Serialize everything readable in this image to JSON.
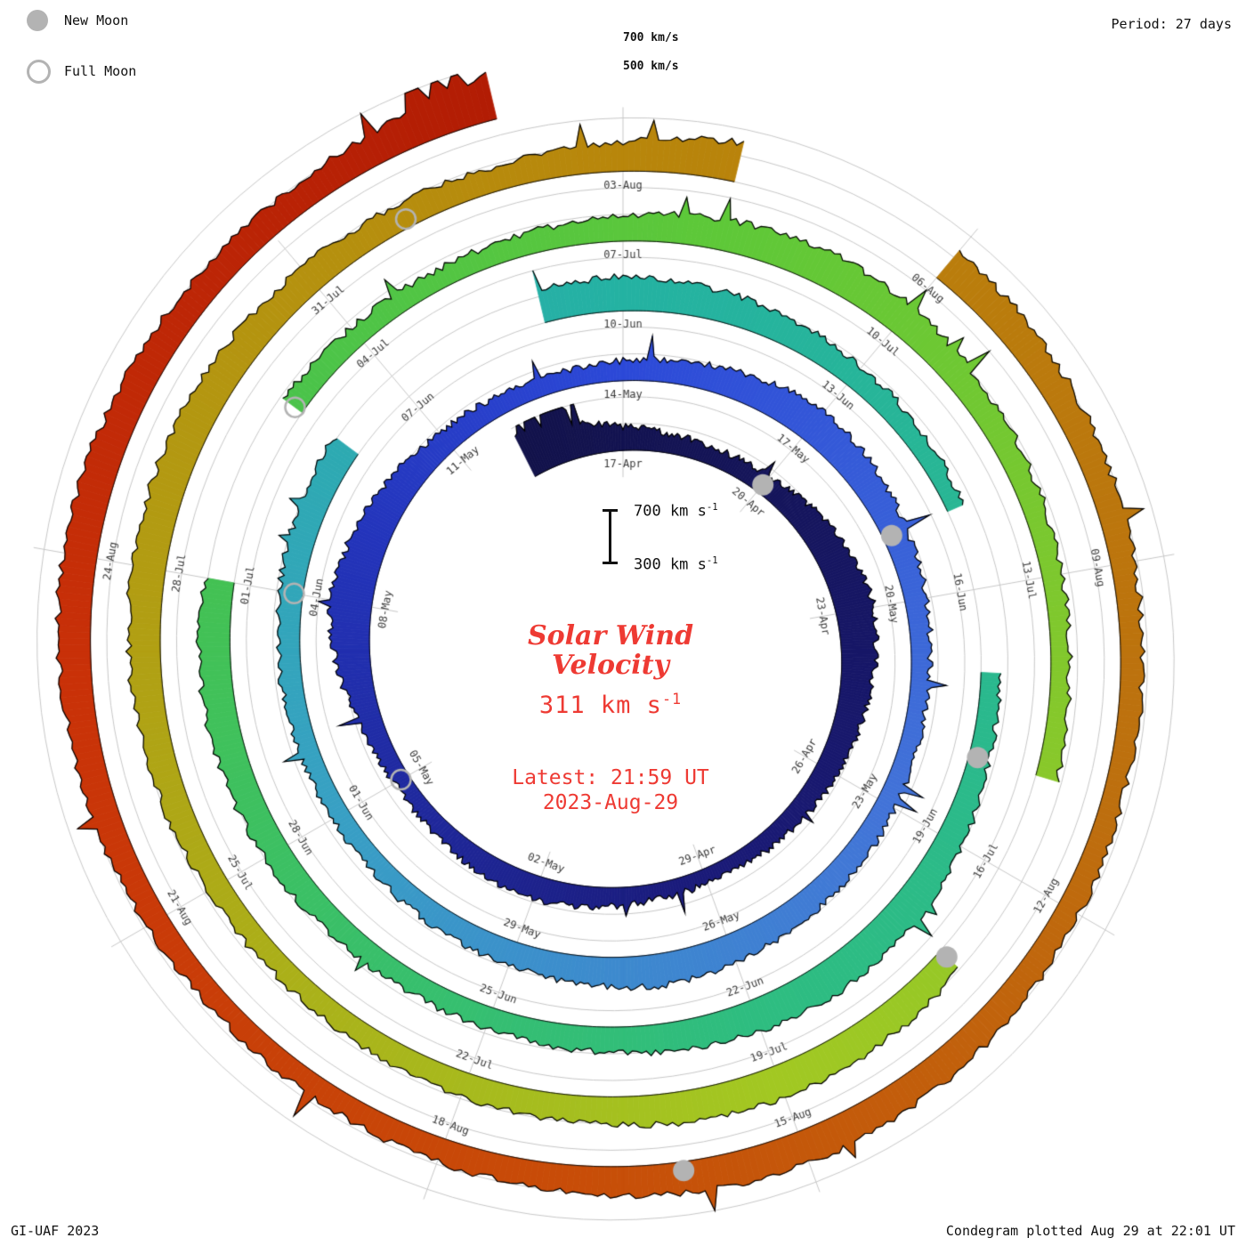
{
  "page": {
    "legend": {
      "new_moon": "New Moon",
      "full_moon": "Full Moon"
    },
    "period": "Period: 27 days",
    "grid_label_700": "700 km/s",
    "grid_label_500": "500 km/s",
    "credit": "GI-UAF 2023",
    "footer": "Condegram plotted Aug 29 at 22:01 UT",
    "center": {
      "title1": "Solar Wind",
      "title2": "Velocity",
      "value": "311 km s",
      "value_sup": "-1",
      "latest": "Latest: 21:59 UT",
      "date": "2023-Aug-29",
      "scale_hi": "700 km s",
      "scale_lo": "300 km s",
      "scale_sup": "-1"
    },
    "colors": {
      "accent_red": "#ee3a33",
      "moon_gray": "#b3b3b3",
      "grid_gray": "#c7c7c7",
      "label_gray": "#3a3a3a"
    }
  },
  "chart_data": {
    "type": "spiral-condegram",
    "quantity": "Solar wind velocity (km/s)",
    "start_date": "2023-04-15",
    "end_date": "2023-08-29",
    "period_days": 27,
    "velocity_axis": {
      "min": 300,
      "max": 700,
      "gridlines": [
        300,
        500,
        700
      ]
    },
    "latest_value_kms": 311,
    "latest_time": "21:59 UT 2023-Aug-29",
    "date_labels": [
      {
        "t": 2,
        "text": "17-Apr"
      },
      {
        "t": 5,
        "text": "20-Apr"
      },
      {
        "t": 8,
        "text": "23-Apr"
      },
      {
        "t": 11,
        "text": "26-Apr"
      },
      {
        "t": 14,
        "text": "29-Apr"
      },
      {
        "t": 17,
        "text": "02-May"
      },
      {
        "t": 20,
        "text": "05-May"
      },
      {
        "t": 23,
        "text": "08-May"
      },
      {
        "t": 26,
        "text": "11-May"
      },
      {
        "t": 29,
        "text": "14-May"
      },
      {
        "t": 32,
        "text": "17-May"
      },
      {
        "t": 35,
        "text": "20-May"
      },
      {
        "t": 38,
        "text": "23-May"
      },
      {
        "t": 41,
        "text": "26-May"
      },
      {
        "t": 44,
        "text": "29-May"
      },
      {
        "t": 47,
        "text": "01-Jun"
      },
      {
        "t": 50,
        "text": "04-Jun"
      },
      {
        "t": 53,
        "text": "07-Jun"
      },
      {
        "t": 56,
        "text": "10-Jun"
      },
      {
        "t": 59,
        "text": "13-Jun"
      },
      {
        "t": 62,
        "text": "16-Jun"
      },
      {
        "t": 65,
        "text": "19-Jun"
      },
      {
        "t": 68,
        "text": "22-Jun"
      },
      {
        "t": 71,
        "text": "25-Jun"
      },
      {
        "t": 74,
        "text": "28-Jun"
      },
      {
        "t": 77,
        "text": "01-Jul"
      },
      {
        "t": 80,
        "text": "04-Jul"
      },
      {
        "t": 83,
        "text": "07-Jul"
      },
      {
        "t": 86,
        "text": "10-Jul"
      },
      {
        "t": 89,
        "text": "13-Jul"
      },
      {
        "t": 92,
        "text": "16-Jul"
      },
      {
        "t": 95,
        "text": "19-Jul"
      },
      {
        "t": 98,
        "text": "22-Jul"
      },
      {
        "t": 101,
        "text": "25-Jul"
      },
      {
        "t": 104,
        "text": "28-Jul"
      },
      {
        "t": 107,
        "text": "31-Jul"
      },
      {
        "t": 110,
        "text": "03-Aug"
      },
      {
        "t": 113,
        "text": "06-Aug"
      },
      {
        "t": 116,
        "text": "09-Aug"
      },
      {
        "t": 119,
        "text": "12-Aug"
      },
      {
        "t": 122,
        "text": "15-Aug"
      },
      {
        "t": 125,
        "text": "18-Aug"
      },
      {
        "t": 128,
        "text": "21-Aug"
      },
      {
        "t": 131,
        "text": "24-Aug"
      }
    ],
    "moons": {
      "new": [
        {
          "t": 5,
          "date": "20-Apr"
        },
        {
          "t": 34,
          "date": "19-May"
        },
        {
          "t": 64,
          "date": "18-Jun"
        },
        {
          "t": 93,
          "date": "17-Jul"
        },
        {
          "t": 123,
          "date": "16-Aug"
        }
      ],
      "full": [
        {
          "t": 20,
          "date": "05-May"
        },
        {
          "t": 50,
          "date": "04-Jun"
        },
        {
          "t": 79,
          "date": "03-Jul"
        },
        {
          "t": 108,
          "date": "01-Aug"
        }
      ]
    },
    "daily_velocity": [
      660,
      560,
      480,
      440,
      430,
      450,
      500,
      560,
      590,
      550,
      500,
      470,
      440,
      420,
      410,
      420,
      450,
      480,
      460,
      430,
      420,
      460,
      550,
      620,
      580,
      520,
      470,
      440,
      430,
      450,
      480,
      520,
      560,
      530,
      490,
      460,
      440,
      430,
      450,
      470,
      490,
      520,
      540,
      510,
      480,
      460,
      440,
      430,
      440,
      460,
      480,
      500,
      520,
      null,
      null,
      540,
      560,
      530,
      500,
      470,
      450,
      430,
      null,
      430,
      460,
      500,
      540,
      560,
      540,
      510,
      480,
      460,
      450,
      470,
      500,
      520,
      540,
      520,
      null,
      470,
      450,
      440,
      460,
      490,
      530,
      560,
      540,
      500,
      470,
      450,
      440,
      460,
      null,
      500,
      530,
      550,
      530,
      500,
      480,
      460,
      450,
      470,
      500,
      530,
      550,
      560,
      540,
      510,
      490,
      480,
      520,
      600,
      null,
      560,
      530,
      500,
      480,
      460,
      450,
      470,
      500,
      530,
      550,
      530,
      500,
      480,
      460,
      450,
      470,
      500,
      530,
      560,
      540,
      510,
      490,
      530,
      640
    ],
    "color_stops": [
      {
        "t": 0,
        "c": "#12124a"
      },
      {
        "t": 14,
        "c": "#1a1a78"
      },
      {
        "t": 24,
        "c": "#2334bb"
      },
      {
        "t": 29,
        "c": "#2c49d8"
      },
      {
        "t": 38,
        "c": "#4273d8"
      },
      {
        "t": 47,
        "c": "#38a0c4"
      },
      {
        "t": 56,
        "c": "#24b2a2"
      },
      {
        "t": 68,
        "c": "#2ebd80"
      },
      {
        "t": 78,
        "c": "#46c24e"
      },
      {
        "t": 84,
        "c": "#5ec838"
      },
      {
        "t": 95,
        "c": "#a2c822"
      },
      {
        "t": 104,
        "c": "#b29c12"
      },
      {
        "t": 110,
        "c": "#b8860b"
      },
      {
        "t": 118,
        "c": "#bd6f0e"
      },
      {
        "t": 124,
        "c": "#c84c08"
      },
      {
        "t": 130,
        "c": "#c93108"
      },
      {
        "t": 136,
        "c": "#b21c04"
      }
    ]
  }
}
